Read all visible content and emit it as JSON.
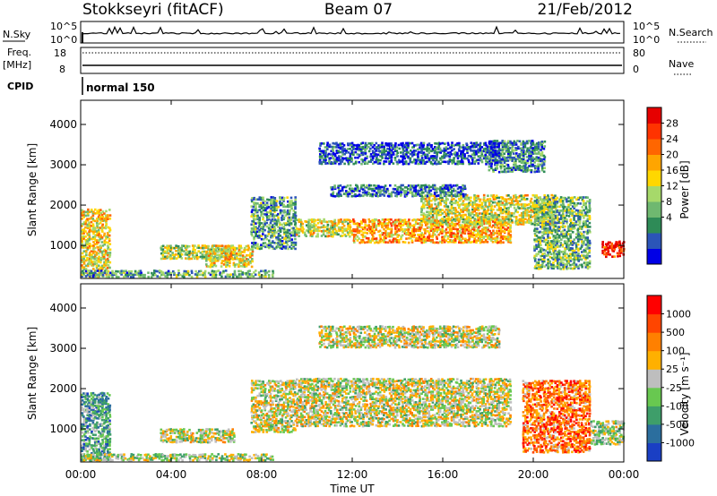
{
  "header": {
    "station": "Stokkseyri (fitACF)",
    "beam": "Beam 07",
    "date": "21/Feb/2012"
  },
  "top_strips": {
    "nsky_label": "N.Sky",
    "nsky_ticks": [
      "10^5",
      "10^0"
    ],
    "nsearch_label": "N.Search",
    "nsearch_ticks": [
      "10^5",
      "10^0"
    ],
    "freq_label_top": "Freq.",
    "freq_label_bottom": "[MHz]",
    "freq_ticks": [
      "18",
      "8"
    ],
    "nave_label": "Nave",
    "nave_ticks": [
      "80",
      "0"
    ],
    "cpid_label": "CPID",
    "cpid_value": "normal 150"
  },
  "chart_data": [
    {
      "type": "heatmap",
      "title": "Power",
      "ylabel": "Slant Range [km]",
      "xlabel": "",
      "x_ticks": [
        "00:00",
        "04:00",
        "08:00",
        "12:00",
        "16:00",
        "20:00",
        "00:00"
      ],
      "y_ticks": [
        1000,
        2000,
        3000,
        4000
      ],
      "ylim": [
        180,
        4600
      ],
      "xlim_hours": [
        0,
        24
      ],
      "colorbar_label": "Power [dB]",
      "colorbar_ticks": [
        "28",
        "24",
        "20",
        "16",
        "12",
        "8",
        "4"
      ],
      "colorbar_colors": [
        "#0000e6",
        "#2b55b8",
        "#2e8b57",
        "#6fb870",
        "#a6d96a",
        "#ffd700",
        "#ffa500",
        "#ff6600",
        "#ff3300",
        "#e60000"
      ],
      "bands": [
        {
          "t0": 0.0,
          "t1": 1.3,
          "r0": 200,
          "r1": 1900,
          "level": 0.55
        },
        {
          "t0": 0.0,
          "t1": 8.5,
          "r0": 200,
          "r1": 380,
          "level": 0.3
        },
        {
          "t0": 3.5,
          "t1": 6.8,
          "r0": 650,
          "r1": 1000,
          "level": 0.45
        },
        {
          "t0": 5.5,
          "t1": 7.6,
          "r0": 450,
          "r1": 1000,
          "level": 0.55
        },
        {
          "t0": 7.5,
          "t1": 9.5,
          "r0": 900,
          "r1": 2200,
          "level": 0.3
        },
        {
          "t0": 9.5,
          "t1": 12.0,
          "r0": 1200,
          "r1": 1650,
          "level": 0.5
        },
        {
          "t0": 12.0,
          "t1": 19.0,
          "r0": 1050,
          "r1": 1650,
          "level": 0.65
        },
        {
          "t0": 15.0,
          "t1": 21.0,
          "r0": 1500,
          "r1": 2250,
          "level": 0.5
        },
        {
          "t0": 18.0,
          "t1": 20.5,
          "r0": 2800,
          "r1": 3600,
          "level": 0.25
        },
        {
          "t0": 10.5,
          "t1": 18.5,
          "r0": 3000,
          "r1": 3550,
          "level": 0.15
        },
        {
          "t0": 20.0,
          "t1": 22.5,
          "r0": 400,
          "r1": 2200,
          "level": 0.35
        },
        {
          "t0": 23.0,
          "t1": 24.0,
          "r0": 700,
          "r1": 1100,
          "level": 0.9
        },
        {
          "t0": 11.0,
          "t1": 17.0,
          "r0": 2200,
          "r1": 2500,
          "level": 0.2
        }
      ]
    },
    {
      "type": "heatmap",
      "title": "Velocity",
      "ylabel": "Slant Range [km]",
      "xlabel": "Time UT",
      "x_ticks": [
        "00:00",
        "04:00",
        "08:00",
        "12:00",
        "16:00",
        "20:00",
        "00:00"
      ],
      "y_ticks": [
        1000,
        2000,
        3000,
        4000
      ],
      "ylim": [
        180,
        4600
      ],
      "xlim_hours": [
        0,
        24
      ],
      "colorbar_label": "Velocity [m s⁻¹]",
      "colorbar_ticks": [
        "1000",
        "500",
        "100",
        "25",
        "-25",
        "-100",
        "-500",
        "-1000"
      ],
      "colorbar_colors": [
        "#1a3fc4",
        "#2b6e9e",
        "#3e9e6a",
        "#68c850",
        "#bebebe",
        "#ffb000",
        "#ff8000",
        "#ff4500",
        "#ff0000"
      ],
      "bands": [
        {
          "t0": 0.0,
          "t1": 1.3,
          "r0": 200,
          "r1": 1900,
          "level": 0.3
        },
        {
          "t0": 0.0,
          "t1": 8.5,
          "r0": 200,
          "r1": 380,
          "level": 0.45
        },
        {
          "t0": 3.5,
          "t1": 6.8,
          "r0": 650,
          "r1": 1000,
          "level": 0.5
        },
        {
          "t0": 7.5,
          "t1": 9.5,
          "r0": 900,
          "r1": 2200,
          "level": 0.5
        },
        {
          "t0": 9.5,
          "t1": 19.0,
          "r0": 1050,
          "r1": 2250,
          "level": 0.5
        },
        {
          "t0": 10.5,
          "t1": 18.5,
          "r0": 3000,
          "r1": 3550,
          "level": 0.5
        },
        {
          "t0": 19.5,
          "t1": 22.5,
          "r0": 400,
          "r1": 2200,
          "level": 0.75
        },
        {
          "t0": 22.5,
          "t1": 24.0,
          "r0": 600,
          "r1": 1200,
          "level": 0.45
        }
      ]
    }
  ]
}
